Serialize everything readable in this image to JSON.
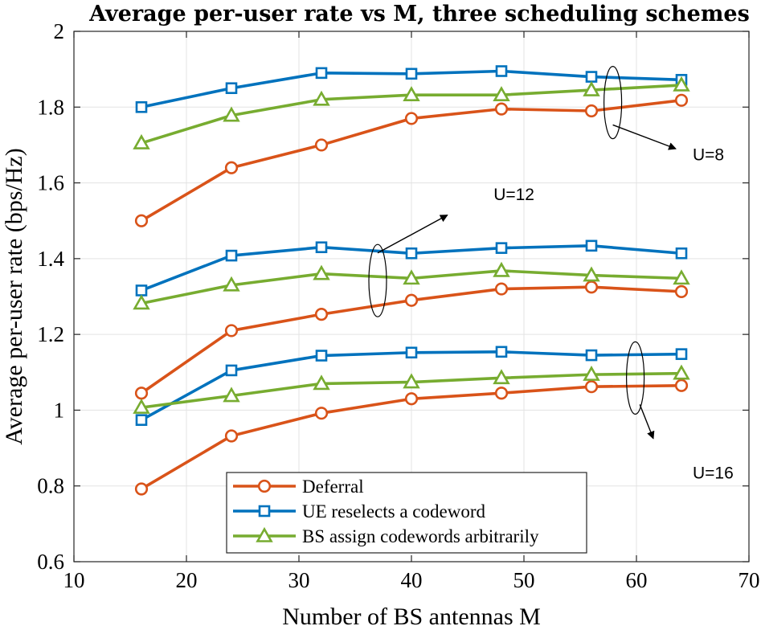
{
  "chart_data": {
    "type": "line",
    "title": "Average per-user rate vs M, three scheduling schemes",
    "xlabel": "Number of BS antennas M",
    "ylabel": "Average per-user rate (bps/Hz)",
    "xlim": [
      10,
      70
    ],
    "ylim": [
      0.6,
      2
    ],
    "xticks": [
      10,
      20,
      30,
      40,
      50,
      60,
      70
    ],
    "yticks": [
      0.6,
      0.8,
      1,
      1.2,
      1.4,
      1.6,
      1.8,
      2
    ],
    "xtick_labels": [
      "10",
      "20",
      "30",
      "40",
      "50",
      "60",
      "70"
    ],
    "ytick_labels": [
      "0.6",
      "0.8",
      "1",
      "1.2",
      "1.4",
      "1.6",
      "1.8",
      "2"
    ],
    "grid": true,
    "legend_position": "bottom-center",
    "x": [
      16,
      24,
      32,
      40,
      48,
      56,
      64
    ],
    "series": [
      {
        "name": "Deferral",
        "group": "U=8",
        "color": "#D95319",
        "marker": "circle",
        "values": [
          1.5,
          1.64,
          1.7,
          1.77,
          1.795,
          1.79,
          1.818
        ]
      },
      {
        "name": "UE reselects a codeword",
        "group": "U=8",
        "color": "#0072BD",
        "marker": "square",
        "values": [
          1.8,
          1.85,
          1.89,
          1.888,
          1.895,
          1.88,
          1.872
        ]
      },
      {
        "name": "BS assign codewords arbitrarily",
        "group": "U=8",
        "color": "#77AC30",
        "marker": "triangle",
        "values": [
          1.705,
          1.778,
          1.82,
          1.832,
          1.832,
          1.845,
          1.858
        ]
      },
      {
        "name": "Deferral",
        "group": "U=12",
        "color": "#D95319",
        "marker": "circle",
        "values": [
          1.045,
          1.21,
          1.253,
          1.29,
          1.32,
          1.325,
          1.313
        ]
      },
      {
        "name": "UE reselects a codeword",
        "group": "U=12",
        "color": "#0072BD",
        "marker": "square",
        "values": [
          1.316,
          1.408,
          1.43,
          1.414,
          1.428,
          1.434,
          1.414
        ]
      },
      {
        "name": "BS assign codewords arbitrarily",
        "group": "U=12",
        "color": "#77AC30",
        "marker": "triangle",
        "values": [
          1.282,
          1.33,
          1.36,
          1.348,
          1.368,
          1.356,
          1.348
        ]
      },
      {
        "name": "Deferral",
        "group": "U=16",
        "color": "#D95319",
        "marker": "circle",
        "values": [
          0.792,
          0.932,
          0.992,
          1.03,
          1.045,
          1.062,
          1.065
        ]
      },
      {
        "name": "UE reselects a codeword",
        "group": "U=16",
        "color": "#0072BD",
        "marker": "square",
        "values": [
          0.974,
          1.105,
          1.144,
          1.152,
          1.154,
          1.145,
          1.148
        ]
      },
      {
        "name": "BS assign codewords arbitrarily",
        "group": "U=16",
        "color": "#77AC30",
        "marker": "triangle",
        "values": [
          1.007,
          1.038,
          1.07,
          1.074,
          1.085,
          1.094,
          1.097
        ]
      }
    ],
    "legend": [
      {
        "label": "Deferral",
        "color": "#D95319",
        "marker": "circle"
      },
      {
        "label": "UE reselects a codeword",
        "color": "#0072BD",
        "marker": "square"
      },
      {
        "label": "BS assign codewords arbitrarily",
        "color": "#77AC30",
        "marker": "triangle"
      }
    ],
    "annotations": [
      {
        "text": "U=8",
        "ellipse_center": [
          57.9,
          1.812
        ],
        "arrow_from": [
          57.9,
          1.753
        ],
        "arrow_to": [
          63.5,
          1.69
        ],
        "text_at": [
          65.0,
          1.66
        ]
      },
      {
        "text": "U=12",
        "ellipse_center": [
          37.0,
          1.342
        ],
        "arrow_from": [
          37.0,
          1.415
        ],
        "arrow_to": [
          43.2,
          1.515
        ],
        "text_at": [
          47.3,
          1.555
        ]
      },
      {
        "text": "U=16",
        "ellipse_center": [
          59.9,
          1.085
        ],
        "arrow_from": [
          60.3,
          1.015
        ],
        "arrow_to": [
          61.5,
          0.925
        ],
        "text_at": [
          65.0,
          0.82
        ]
      }
    ]
  }
}
